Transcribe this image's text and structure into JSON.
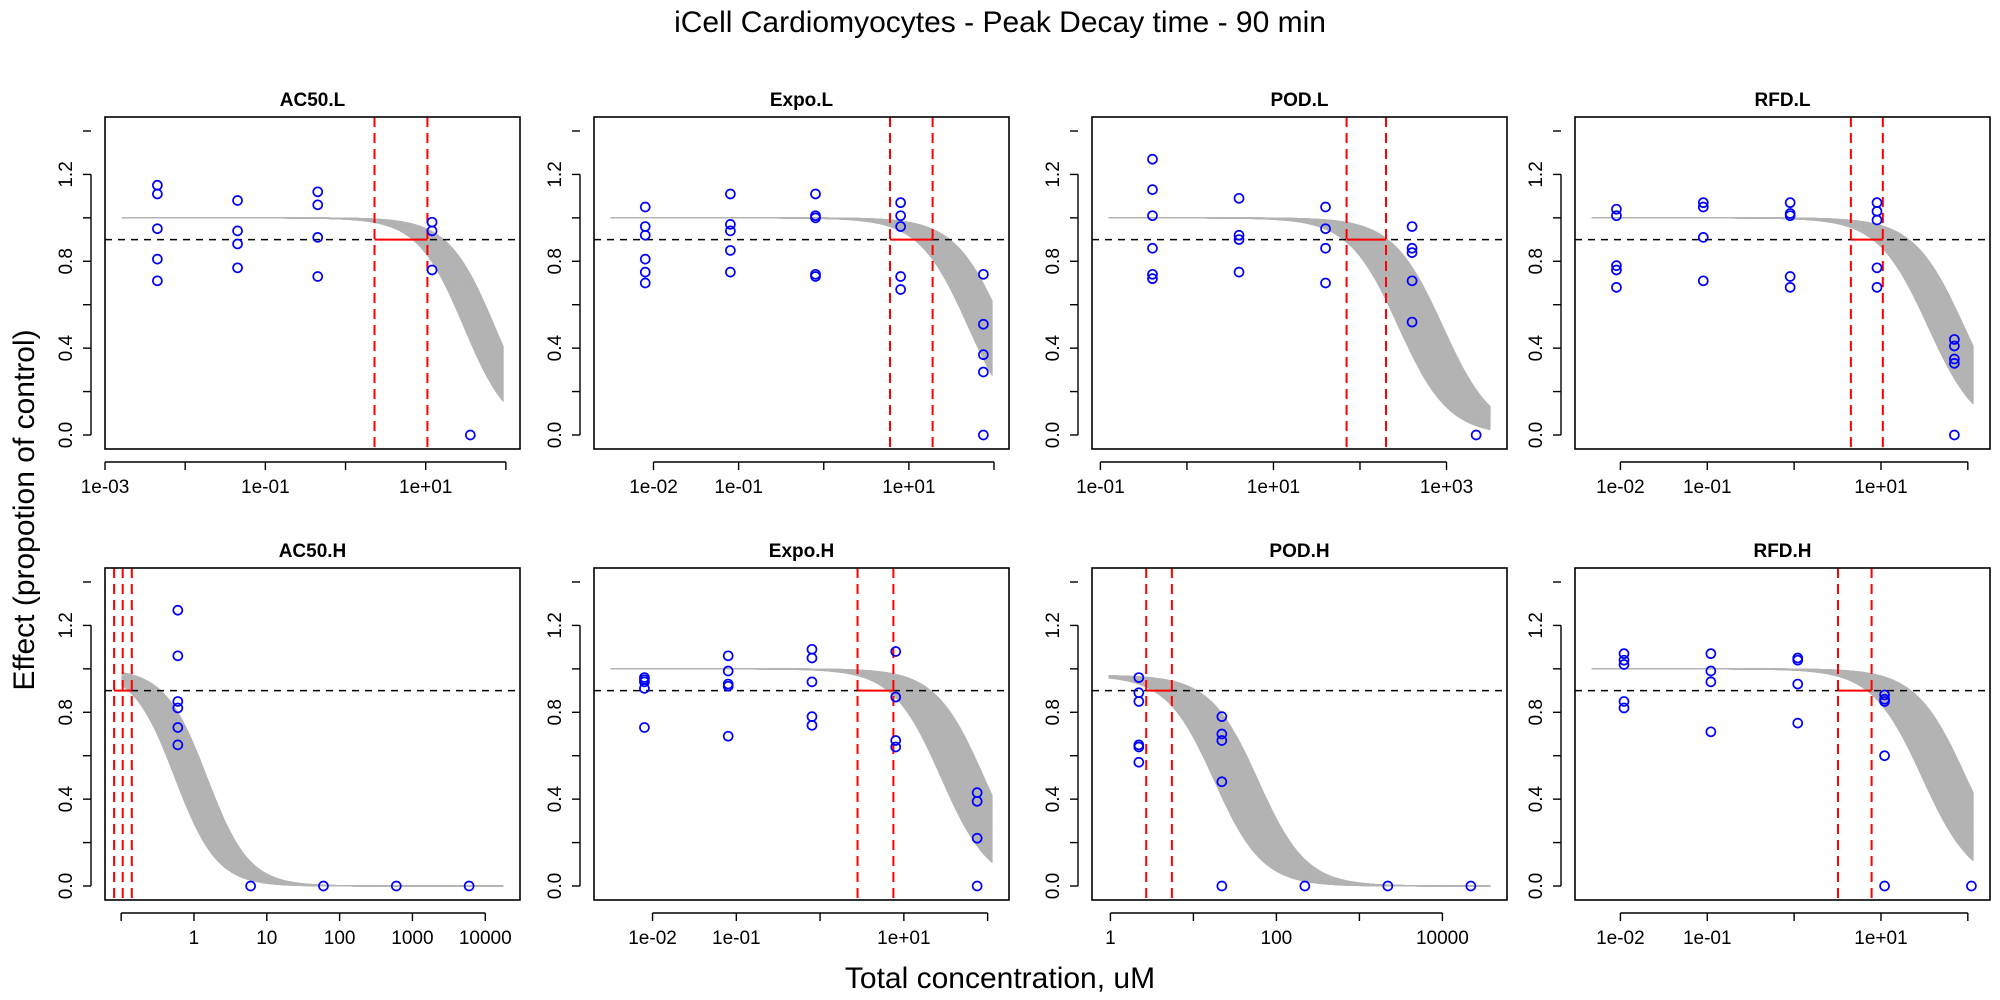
{
  "title": "iCell Cardiomyocytes -  Peak Decay time - 90 min",
  "xlabel": "Total concentration, uM",
  "ylabel": "Effect (propotion of control)",
  "colors": {
    "points": "#0000ff",
    "curves": "#b3b3b3",
    "bounds": "#ff0000",
    "threshold": "#000000"
  },
  "chart_data": [
    {
      "type": "scatter",
      "title": "AC50.L",
      "x_scale": "log10",
      "xlim": [
        0.001,
        150
      ],
      "ylim": [
        0,
        1.4
      ],
      "xticks": [
        0.001,
        0.1,
        10
      ],
      "xtick_labels": [
        "1e-03",
        "1e-01",
        "1e+01"
      ],
      "yticks": [
        0,
        0.4,
        0.8,
        1.2
      ],
      "ytick_labels": [
        "0.0",
        "0.4",
        "0.8",
        "1.2"
      ],
      "threshold": 0.9,
      "bounds": [
        2.3,
        10.5
      ],
      "curves": {
        "top": 1.0,
        "hill": 1.5,
        "ec50_lo": 30,
        "ec50_hi": 72,
        "count": 40
      },
      "points": [
        [
          0.0045,
          1.15
        ],
        [
          0.0045,
          1.11
        ],
        [
          0.0045,
          0.95
        ],
        [
          0.0045,
          0.81
        ],
        [
          0.0045,
          0.71
        ],
        [
          0.045,
          1.08
        ],
        [
          0.045,
          0.94
        ],
        [
          0.045,
          0.88
        ],
        [
          0.045,
          0.77
        ],
        [
          0.45,
          1.12
        ],
        [
          0.45,
          1.06
        ],
        [
          0.45,
          0.91
        ],
        [
          0.45,
          0.73
        ],
        [
          12,
          0.98
        ],
        [
          12,
          0.94
        ],
        [
          12,
          0.76
        ],
        [
          36,
          0.0
        ]
      ]
    },
    {
      "type": "scatter",
      "title": "Expo.L",
      "x_scale": "log10",
      "xlim": [
        0.002,
        150
      ],
      "ylim": [
        0,
        1.4
      ],
      "xticks": [
        0.01,
        0.1,
        10
      ],
      "xtick_labels": [
        "1e-02",
        "1e-01",
        "1e+01"
      ],
      "yticks": [
        0,
        0.4,
        0.8,
        1.2
      ],
      "ytick_labels": [
        "0.0",
        "0.4",
        "0.8",
        "1.2"
      ],
      "threshold": 0.9,
      "bounds": [
        6,
        19
      ],
      "curves": {
        "top": 1.0,
        "hill": 1.5,
        "ec50_lo": 50,
        "ec50_hi": 130,
        "count": 40
      },
      "points": [
        [
          0.008,
          1.05
        ],
        [
          0.008,
          0.96
        ],
        [
          0.008,
          0.92
        ],
        [
          0.008,
          0.81
        ],
        [
          0.008,
          0.75
        ],
        [
          0.008,
          0.7
        ],
        [
          0.08,
          1.11
        ],
        [
          0.08,
          0.97
        ],
        [
          0.08,
          0.94
        ],
        [
          0.08,
          0.85
        ],
        [
          0.08,
          0.75
        ],
        [
          0.8,
          1.11
        ],
        [
          0.8,
          1.01
        ],
        [
          0.8,
          1.0
        ],
        [
          0.8,
          0.74
        ],
        [
          0.8,
          0.73
        ],
        [
          8,
          1.07
        ],
        [
          8,
          1.01
        ],
        [
          8,
          0.96
        ],
        [
          8,
          0.73
        ],
        [
          8,
          0.67
        ],
        [
          75,
          0.74
        ],
        [
          75,
          0.51
        ],
        [
          75,
          0.37
        ],
        [
          75,
          0.29
        ],
        [
          75,
          0.0
        ]
      ]
    },
    {
      "type": "scatter",
      "title": "POD.L",
      "x_scale": "log10",
      "xlim": [
        0.08,
        5000
      ],
      "ylim": [
        0,
        1.4
      ],
      "xticks": [
        0.1,
        10,
        1000
      ],
      "xtick_labels": [
        "1e-01",
        "1e+01",
        "1e+03"
      ],
      "yticks": [
        0,
        0.4,
        0.8,
        1.2
      ],
      "ytick_labels": [
        "0.0",
        "0.4",
        "0.8",
        "1.2"
      ],
      "threshold": 0.9,
      "bounds": [
        70,
        200
      ],
      "curves": {
        "top": 1.0,
        "hill": 1.5,
        "ec50_lo": 280,
        "ec50_hi": 900,
        "count": 40
      },
      "points": [
        [
          0.4,
          1.27
        ],
        [
          0.4,
          1.13
        ],
        [
          0.4,
          1.01
        ],
        [
          0.4,
          0.86
        ],
        [
          0.4,
          0.74
        ],
        [
          0.4,
          0.72
        ],
        [
          4,
          1.09
        ],
        [
          4,
          0.92
        ],
        [
          4,
          0.9
        ],
        [
          4,
          0.75
        ],
        [
          40,
          1.05
        ],
        [
          40,
          0.95
        ],
        [
          40,
          0.86
        ],
        [
          40,
          0.7
        ],
        [
          400,
          0.96
        ],
        [
          400,
          0.86
        ],
        [
          400,
          0.84
        ],
        [
          400,
          0.71
        ],
        [
          400,
          0.52
        ],
        [
          2200,
          0.0
        ]
      ]
    },
    {
      "type": "scatter",
      "title": "RFD.L",
      "x_scale": "log10",
      "xlim": [
        0.003,
        180
      ],
      "ylim": [
        0,
        1.4
      ],
      "xticks": [
        0.01,
        0.1,
        10
      ],
      "xtick_labels": [
        "1e-02",
        "1e-01",
        "1e+01"
      ],
      "yticks": [
        0,
        0.4,
        0.8,
        1.2
      ],
      "ytick_labels": [
        "0.0",
        "0.4",
        "0.8",
        "1.2"
      ],
      "threshold": 0.9,
      "bounds": [
        4.5,
        10.5
      ],
      "curves": {
        "top": 1.0,
        "hill": 1.5,
        "ec50_lo": 35,
        "ec50_hi": 90,
        "count": 40
      },
      "points": [
        [
          0.009,
          1.04
        ],
        [
          0.009,
          1.01
        ],
        [
          0.009,
          0.78
        ],
        [
          0.009,
          0.76
        ],
        [
          0.009,
          0.68
        ],
        [
          0.09,
          1.07
        ],
        [
          0.09,
          1.05
        ],
        [
          0.09,
          0.91
        ],
        [
          0.09,
          0.71
        ],
        [
          0.9,
          1.07
        ],
        [
          0.9,
          1.02
        ],
        [
          0.9,
          1.01
        ],
        [
          0.9,
          0.73
        ],
        [
          0.9,
          0.68
        ],
        [
          9,
          1.07
        ],
        [
          9,
          1.03
        ],
        [
          9,
          0.99
        ],
        [
          9,
          0.77
        ],
        [
          9,
          0.68
        ],
        [
          70,
          0.44
        ],
        [
          70,
          0.41
        ],
        [
          70,
          0.35
        ],
        [
          70,
          0.33
        ],
        [
          70,
          0.0
        ]
      ]
    },
    {
      "type": "scatter",
      "title": "AC50.H",
      "x_scale": "log10",
      "xlim": [
        0.06,
        30000
      ],
      "ylim": [
        0,
        1.4
      ],
      "xticks": [
        1,
        10,
        100,
        1000,
        10000
      ],
      "xtick_labels": [
        "1",
        "10",
        "100",
        "1000",
        "10000"
      ],
      "yticks": [
        0,
        0.4,
        0.8,
        1.2
      ],
      "ytick_labels": [
        "0.0",
        "0.4",
        "0.8",
        "1.2"
      ],
      "threshold": 0.9,
      "bounds": [
        0.08,
        0.105,
        0.14
      ],
      "curves": {
        "top": 1.0,
        "hill": 1.5,
        "ec50_lo": 0.55,
        "ec50_hi": 1.5,
        "count": 40
      },
      "points": [
        [
          0.6,
          1.27
        ],
        [
          0.6,
          1.06
        ],
        [
          0.6,
          0.85
        ],
        [
          0.6,
          0.82
        ],
        [
          0.6,
          0.73
        ],
        [
          0.6,
          0.65
        ],
        [
          6,
          0.0
        ],
        [
          60,
          0.0
        ],
        [
          600,
          0.0
        ],
        [
          6000,
          0.0
        ]
      ]
    },
    {
      "type": "scatter",
      "title": "Expo.H",
      "x_scale": "log10",
      "xlim": [
        0.002,
        180
      ],
      "ylim": [
        0,
        1.4
      ],
      "xticks": [
        0.01,
        0.1,
        10
      ],
      "xtick_labels": [
        "1e-02",
        "1e-01",
        "1e+01"
      ],
      "yticks": [
        0,
        0.4,
        0.8,
        1.2
      ],
      "ytick_labels": [
        "0.0",
        "0.4",
        "0.8",
        "1.2"
      ],
      "threshold": 0.9,
      "bounds": [
        2.8,
        7.5
      ],
      "curves": {
        "top": 1.0,
        "hill": 1.5,
        "ec50_lo": 28,
        "ec50_hi": 90,
        "count": 40
      },
      "points": [
        [
          0.008,
          0.96
        ],
        [
          0.008,
          0.95
        ],
        [
          0.008,
          0.94
        ],
        [
          0.008,
          0.91
        ],
        [
          0.008,
          0.73
        ],
        [
          0.08,
          1.06
        ],
        [
          0.08,
          0.99
        ],
        [
          0.08,
          0.93
        ],
        [
          0.08,
          0.92
        ],
        [
          0.08,
          0.69
        ],
        [
          0.8,
          1.09
        ],
        [
          0.8,
          1.05
        ],
        [
          0.8,
          0.94
        ],
        [
          0.8,
          0.78
        ],
        [
          0.8,
          0.74
        ],
        [
          8,
          1.08
        ],
        [
          8,
          0.87
        ],
        [
          8,
          0.67
        ],
        [
          8,
          0.64
        ],
        [
          75,
          0.43
        ],
        [
          75,
          0.39
        ],
        [
          75,
          0.22
        ],
        [
          75,
          0.0
        ]
      ]
    },
    {
      "type": "scatter",
      "title": "POD.H",
      "x_scale": "log10",
      "xlim": [
        0.6,
        60000
      ],
      "ylim": [
        0,
        1.4
      ],
      "xticks": [
        1,
        100,
        10000
      ],
      "xtick_labels": [
        "1",
        "100",
        "10000"
      ],
      "yticks": [
        0,
        0.4,
        0.8,
        1.2
      ],
      "ytick_labels": [
        "0.0",
        "0.4",
        "0.8",
        "1.2"
      ],
      "threshold": 0.9,
      "bounds": [
        2.7,
        5.5
      ],
      "curves": {
        "top": 0.97,
        "hill": 1.5,
        "ec50_lo": 18,
        "ec50_hi": 60,
        "count": 40
      },
      "points": [
        [
          2.2,
          0.96
        ],
        [
          2.2,
          0.89
        ],
        [
          2.2,
          0.85
        ],
        [
          2.2,
          0.65
        ],
        [
          2.2,
          0.64
        ],
        [
          2.2,
          0.57
        ],
        [
          22,
          0.78
        ],
        [
          22,
          0.7
        ],
        [
          22,
          0.67
        ],
        [
          22,
          0.48
        ],
        [
          22,
          0.0
        ],
        [
          220,
          0.0
        ],
        [
          2200,
          0.0
        ],
        [
          22000,
          0.0
        ]
      ]
    },
    {
      "type": "scatter",
      "title": "RFD.H",
      "x_scale": "log10",
      "xlim": [
        0.003,
        180
      ],
      "ylim": [
        0,
        1.4
      ],
      "xticks": [
        0.01,
        0.1,
        10
      ],
      "xtick_labels": [
        "1e-02",
        "1e-01",
        "1e+01"
      ],
      "yticks": [
        0,
        0.4,
        0.8,
        1.2
      ],
      "ytick_labels": [
        "0.0",
        "0.4",
        "0.8",
        "1.2"
      ],
      "threshold": 0.9,
      "bounds": [
        3.2,
        7.8
      ],
      "curves": {
        "top": 1.0,
        "hill": 1.5,
        "ec50_lo": 30,
        "ec50_hi": 95,
        "count": 40
      },
      "points": [
        [
          0.011,
          1.07
        ],
        [
          0.011,
          1.04
        ],
        [
          0.011,
          1.02
        ],
        [
          0.011,
          0.85
        ],
        [
          0.011,
          0.82
        ],
        [
          0.11,
          1.07
        ],
        [
          0.11,
          0.99
        ],
        [
          0.11,
          0.94
        ],
        [
          0.11,
          0.71
        ],
        [
          1.1,
          1.05
        ],
        [
          1.1,
          1.04
        ],
        [
          1.1,
          0.93
        ],
        [
          1.1,
          0.75
        ],
        [
          11,
          0.88
        ],
        [
          11,
          0.86
        ],
        [
          11,
          0.85
        ],
        [
          11,
          0.6
        ],
        [
          11,
          0.0
        ],
        [
          110,
          0.0
        ]
      ]
    }
  ]
}
